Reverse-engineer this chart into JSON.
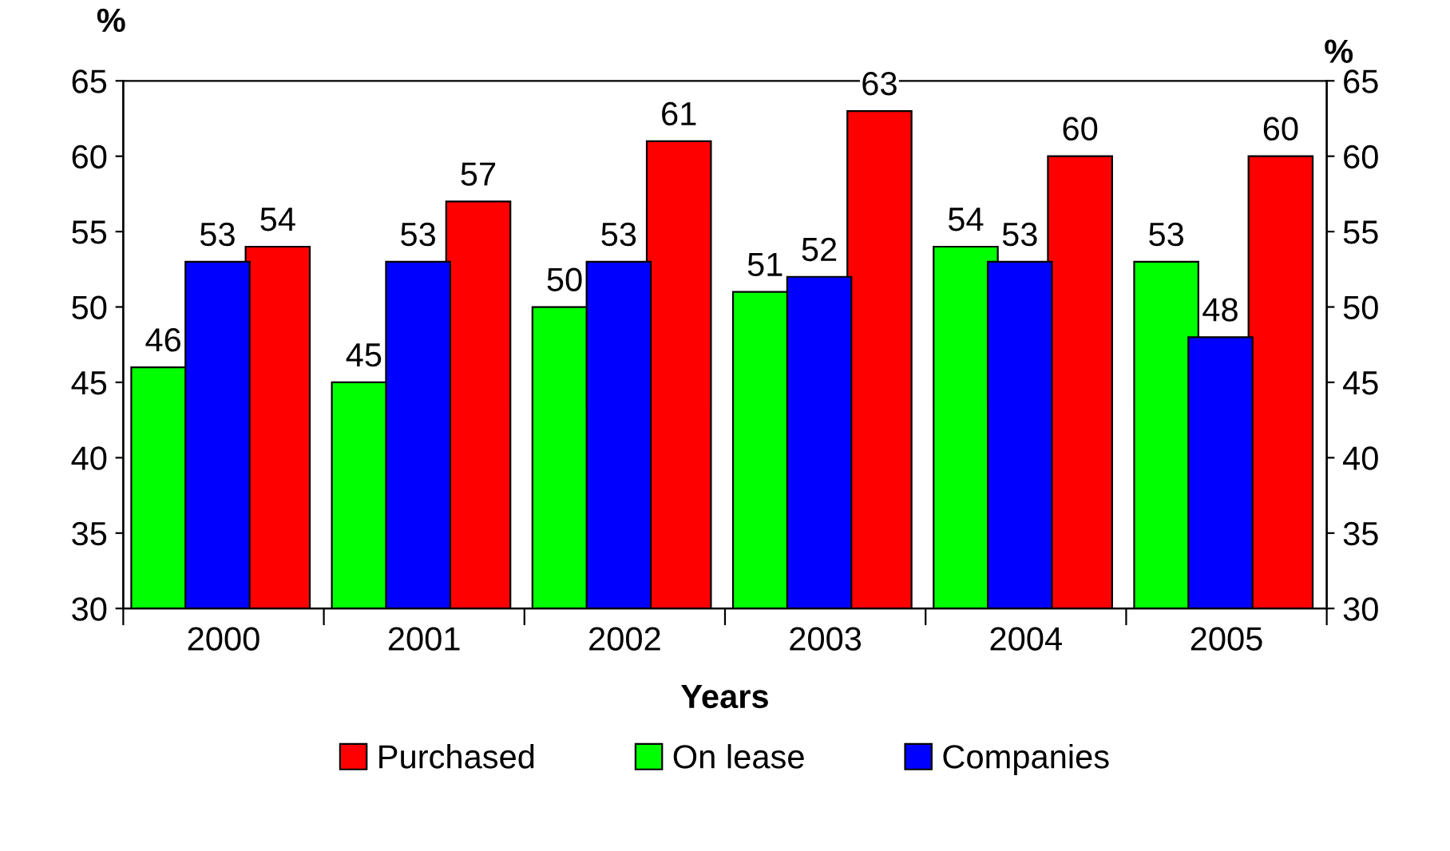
{
  "chart_data": {
    "type": "bar",
    "xlabel": "Years",
    "ylabel": "%",
    "y2label": "%",
    "categories": [
      "2000",
      "2001",
      "2002",
      "2003",
      "2004",
      "2005"
    ],
    "series": [
      {
        "name": "Purchased",
        "color": "#ff0000",
        "values": [
          54,
          57,
          61,
          63,
          60,
          60
        ]
      },
      {
        "name": "On lease",
        "color": "#00ff00",
        "values": [
          46,
          45,
          50,
          51,
          54,
          53
        ]
      },
      {
        "name": "Companies",
        "color": "#0000ff",
        "values": [
          53,
          53,
          53,
          52,
          53,
          48
        ]
      }
    ],
    "ylim": [
      30,
      65
    ],
    "yticks": [
      30,
      35,
      40,
      45,
      50,
      55,
      60,
      65
    ],
    "y2lim": [
      30,
      65
    ],
    "y2ticks": [
      30,
      35,
      40,
      45,
      50,
      55,
      60,
      65
    ],
    "data_labels": true,
    "legend": "bottom",
    "grid": false
  }
}
